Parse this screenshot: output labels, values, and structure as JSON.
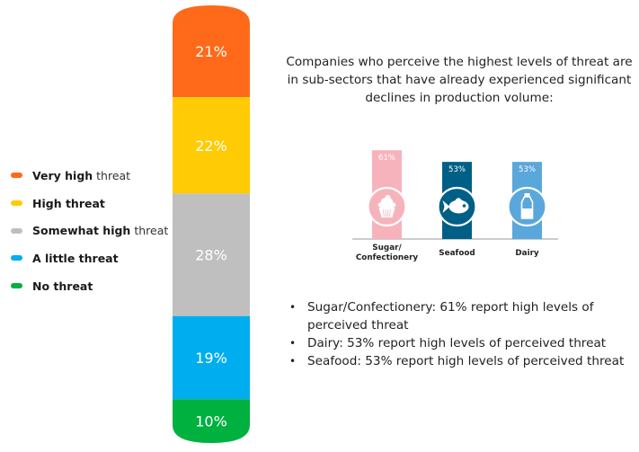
{
  "chart_data": [
    {
      "type": "bar",
      "subtype": "stacked-100",
      "title": "",
      "categories": [
        "Very high threat",
        "High threat",
        "Somewhat high threat",
        "A little threat",
        "No threat"
      ],
      "values": [
        21,
        22,
        28,
        19,
        10
      ],
      "labels": [
        "21%",
        "22%",
        "28%",
        "19%",
        "10%"
      ],
      "colors": [
        "#fe6a1a",
        "#ffcb05",
        "#bfbfbf",
        "#00aeef",
        "#00b140"
      ],
      "legend": {
        "position": "left",
        "items": [
          {
            "bold": "Very high",
            "light": " threat",
            "color": "#fe6a1a"
          },
          {
            "bold": "High threat",
            "light": "",
            "color": "#ffcb05"
          },
          {
            "bold": "Somewhat high",
            "light": " threat",
            "color": "#bfbfbf"
          },
          {
            "bold": "A little threat",
            "light": "",
            "color": "#00aeef"
          },
          {
            "bold": "No threat",
            "light": "",
            "color": "#00b140"
          }
        ]
      }
    },
    {
      "type": "bar",
      "title": "",
      "categories": [
        "Sugar/ Confectionery",
        "Seafood",
        "Dairy"
      ],
      "category_lines": [
        [
          "Sugar/",
          "Confectionery"
        ],
        [
          "Seafood"
        ],
        [
          "Dairy"
        ]
      ],
      "values": [
        61,
        53,
        53
      ],
      "labels": [
        "61%",
        "53%",
        "53%"
      ],
      "icons": [
        "cupcake-icon",
        "fish-icon",
        "milk-bottle-icon"
      ],
      "colors": [
        "#f7b3bc",
        "#005f86",
        "#5aa7dc"
      ],
      "xlabel": "",
      "ylabel": "",
      "ylim": [
        0,
        100
      ]
    }
  ],
  "intro_text": [
    "Companies who perceive the highest levels of threat are",
    "in sub-sectors that have already experienced significant",
    "declines in production volume:"
  ],
  "bullets": [
    {
      "lines": [
        "Sugar/Confectionery: 61% report high levels of",
        "perceived threat"
      ]
    },
    {
      "lines": [
        "Dairy: 53% report high levels of perceived threat"
      ]
    },
    {
      "lines": [
        "Seafood: 53% report high levels of perceived threat"
      ]
    }
  ],
  "bullet_glyph": "•"
}
